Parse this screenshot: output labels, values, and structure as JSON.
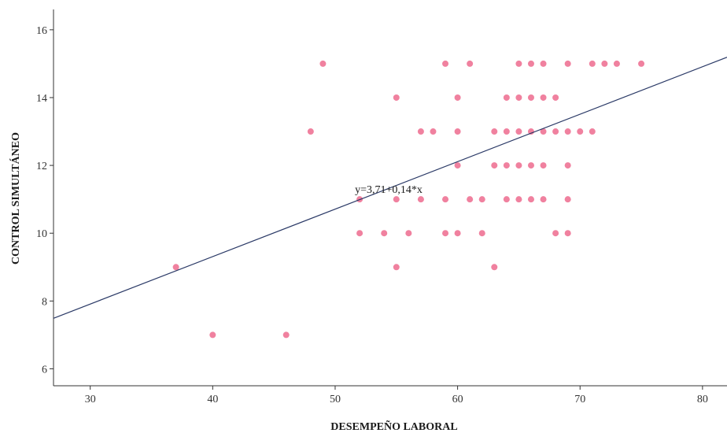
{
  "chart_data": {
    "type": "scatter",
    "xlabel": "DESEMPEÑO LABORAL",
    "ylabel": "CONTROL SIMULTÁNEO",
    "xlim": [
      27,
      82
    ],
    "ylim": [
      5.5,
      16.6
    ],
    "x_ticks": [
      30,
      40,
      50,
      60,
      70,
      80
    ],
    "y_ticks": [
      6,
      8,
      10,
      12,
      14,
      16
    ],
    "grid": false,
    "point_color": "#f0819f",
    "line_color": "#2b3a67",
    "fit_line": {
      "intercept": 3.71,
      "slope": 0.14,
      "label": "y=3,71+0,14*x",
      "label_at": [
        52,
        11.3
      ]
    },
    "points": [
      [
        37,
        9
      ],
      [
        40,
        7
      ],
      [
        46,
        7
      ],
      [
        48,
        13
      ],
      [
        49,
        15
      ],
      [
        52,
        11
      ],
      [
        52,
        10
      ],
      [
        54,
        10
      ],
      [
        55,
        14
      ],
      [
        55,
        11
      ],
      [
        55,
        9
      ],
      [
        56,
        10
      ],
      [
        57,
        13
      ],
      [
        57,
        11
      ],
      [
        58,
        13
      ],
      [
        59,
        15
      ],
      [
        59,
        11
      ],
      [
        59,
        10
      ],
      [
        60,
        14
      ],
      [
        60,
        13
      ],
      [
        60,
        12
      ],
      [
        60,
        10
      ],
      [
        61,
        15
      ],
      [
        61,
        11
      ],
      [
        62,
        11
      ],
      [
        62,
        10
      ],
      [
        63,
        13
      ],
      [
        63,
        12
      ],
      [
        63,
        9
      ],
      [
        64,
        14
      ],
      [
        64,
        13
      ],
      [
        64,
        12
      ],
      [
        64,
        11
      ],
      [
        65,
        15
      ],
      [
        65,
        14
      ],
      [
        65,
        13
      ],
      [
        65,
        12
      ],
      [
        65,
        11
      ],
      [
        66,
        15
      ],
      [
        66,
        14
      ],
      [
        66,
        13
      ],
      [
        66,
        12
      ],
      [
        66,
        11
      ],
      [
        67,
        15
      ],
      [
        67,
        14
      ],
      [
        67,
        13
      ],
      [
        67,
        12
      ],
      [
        67,
        11
      ],
      [
        68,
        14
      ],
      [
        68,
        13
      ],
      [
        68,
        10
      ],
      [
        69,
        15
      ],
      [
        69,
        13
      ],
      [
        69,
        12
      ],
      [
        69,
        11
      ],
      [
        69,
        10
      ],
      [
        70,
        13
      ],
      [
        71,
        15
      ],
      [
        71,
        13
      ],
      [
        72,
        15
      ],
      [
        73,
        15
      ],
      [
        75,
        15
      ]
    ]
  }
}
